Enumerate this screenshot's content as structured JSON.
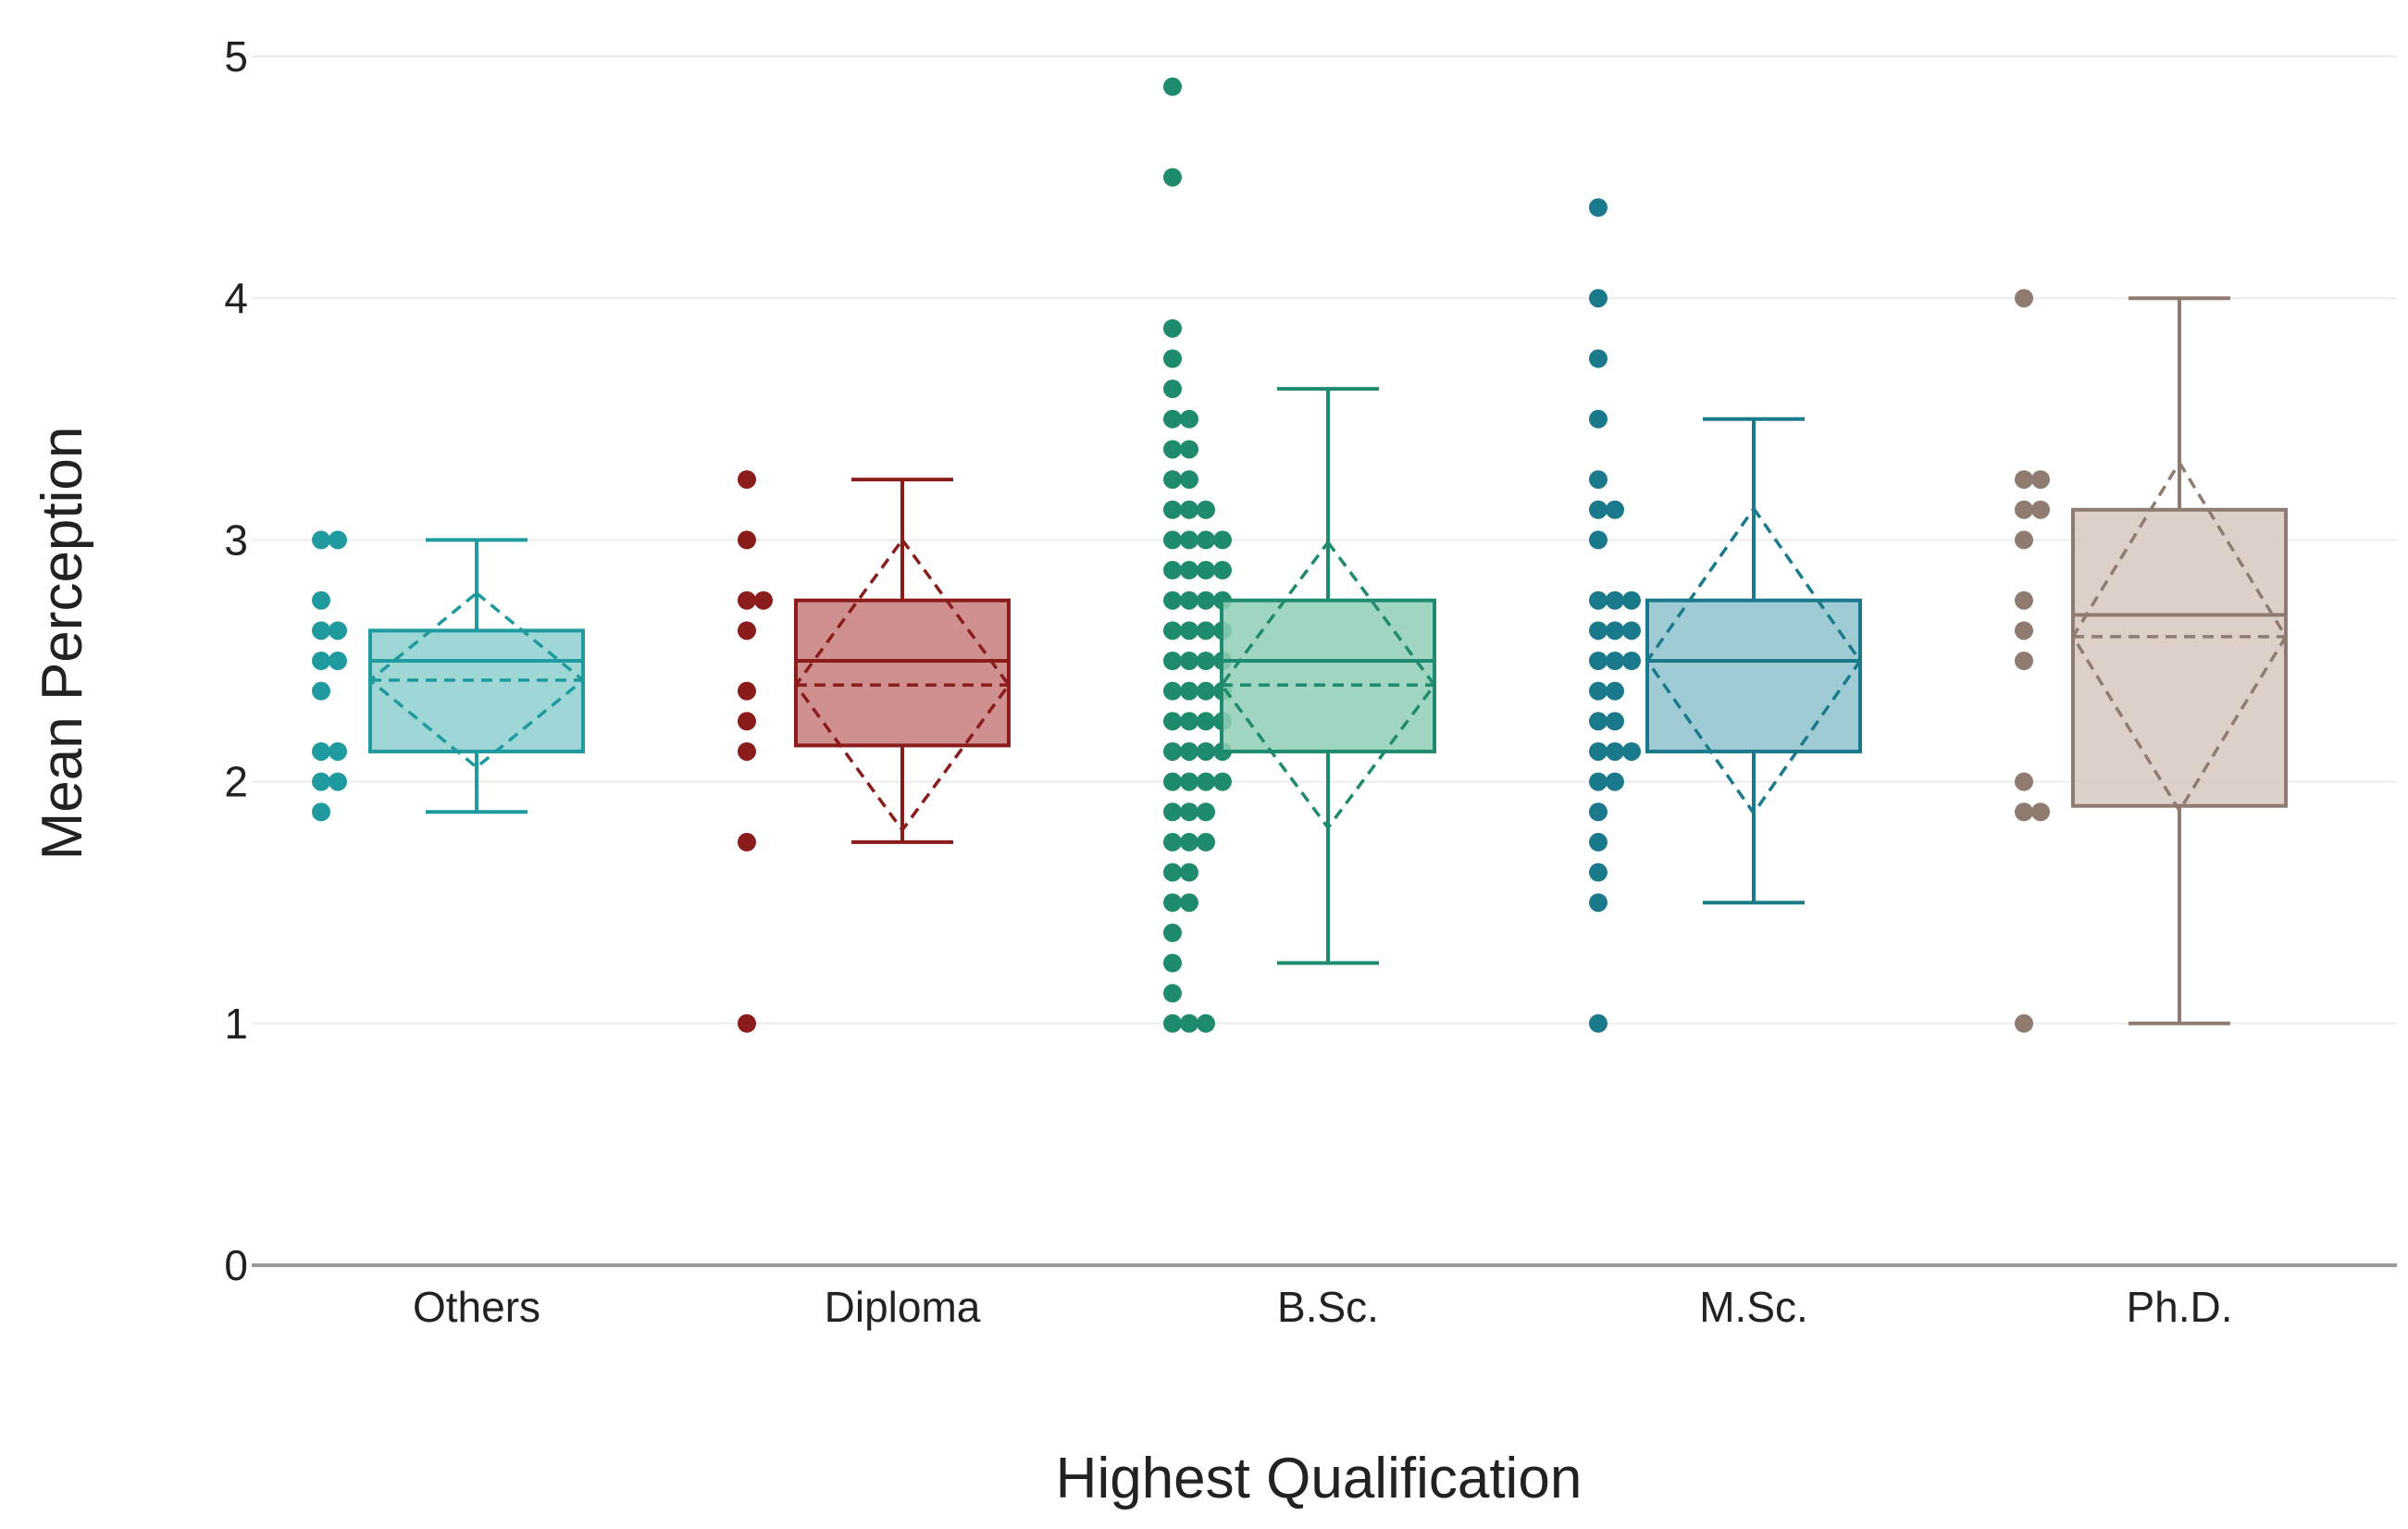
{
  "chart_data": {
    "type": "box",
    "title": "",
    "xlabel": "Highest Qualification",
    "ylabel": "Mean Perception",
    "ylim": [
      0,
      5
    ],
    "yticks": [
      0,
      1,
      2,
      3,
      4,
      5
    ],
    "grid": true,
    "categories": [
      "Others",
      "Diploma",
      "B.Sc.",
      "M.Sc.",
      "Ph.D."
    ],
    "series": [
      {
        "name": "Others",
        "color": "#1f9a9e",
        "fill": "#8ecfcf",
        "whisker_low": 1.875,
        "q1": 2.125,
        "median": 2.5,
        "q3": 2.625,
        "whisker_high": 3.0,
        "mean": 2.42,
        "sd": 0.36,
        "points": [
          3.0,
          3.0,
          2.75,
          2.625,
          2.625,
          2.5,
          2.5,
          2.375,
          2.125,
          2.125,
          2.0,
          2.0,
          1.875
        ]
      },
      {
        "name": "Diploma",
        "color": "#8b1c1c",
        "fill": "#c97d7d",
        "whisker_low": 1.75,
        "q1": 2.15,
        "median": 2.5,
        "q3": 2.75,
        "whisker_high": 3.25,
        "mean": 2.4,
        "sd": 0.6,
        "points": [
          3.25,
          3.0,
          2.75,
          2.75,
          2.625,
          2.375,
          2.25,
          2.125,
          1.75,
          1.0
        ]
      },
      {
        "name": "B.Sc.",
        "color": "#1e8a6e",
        "fill": "#8fcfb6",
        "whisker_low": 1.25,
        "q1": 2.125,
        "median": 2.5,
        "q3": 2.75,
        "whisker_high": 3.625,
        "mean": 2.4,
        "sd": 0.59,
        "points": [
          4.875,
          4.5,
          3.875,
          3.75,
          3.625,
          3.5,
          3.5,
          3.375,
          3.375,
          3.25,
          3.25,
          3.125,
          3.125,
          3.125,
          3.0,
          3.0,
          3.0,
          3.0,
          2.875,
          2.875,
          2.875,
          2.875,
          2.75,
          2.75,
          2.75,
          2.75,
          2.625,
          2.625,
          2.625,
          2.625,
          2.5,
          2.5,
          2.5,
          2.5,
          2.375,
          2.375,
          2.375,
          2.375,
          2.25,
          2.25,
          2.25,
          2.25,
          2.125,
          2.125,
          2.125,
          2.125,
          2.0,
          2.0,
          2.0,
          2.0,
          1.875,
          1.875,
          1.875,
          1.75,
          1.75,
          1.75,
          1.625,
          1.625,
          1.5,
          1.5,
          1.375,
          1.25,
          1.125,
          1.0,
          1.0,
          1.0
        ]
      },
      {
        "name": "M.Sc.",
        "color": "#1a7a8c",
        "fill": "#8ec2cc",
        "whisker_low": 1.5,
        "q1": 2.125,
        "median": 2.5,
        "q3": 2.75,
        "whisker_high": 3.5,
        "mean": 2.5,
        "sd": 0.63,
        "points": [
          4.375,
          4.0,
          3.75,
          3.5,
          3.25,
          3.125,
          3.125,
          3.0,
          2.75,
          2.75,
          2.75,
          2.625,
          2.625,
          2.625,
          2.5,
          2.5,
          2.5,
          2.375,
          2.375,
          2.25,
          2.25,
          2.125,
          2.125,
          2.125,
          2.0,
          2.0,
          1.875,
          1.75,
          1.625,
          1.5,
          1.0
        ]
      },
      {
        "name": "Ph.D.",
        "color": "#8f7b70",
        "fill": "#d6c8bf",
        "whisker_low": 1.0,
        "q1": 1.9,
        "median": 2.69,
        "q3": 3.125,
        "whisker_high": 4.0,
        "mean": 2.6,
        "sd": 0.72,
        "points": [
          4.0,
          3.25,
          3.25,
          3.125,
          3.125,
          3.0,
          2.75,
          2.625,
          2.5,
          2.0,
          1.875,
          1.875,
          1.0
        ]
      }
    ]
  }
}
